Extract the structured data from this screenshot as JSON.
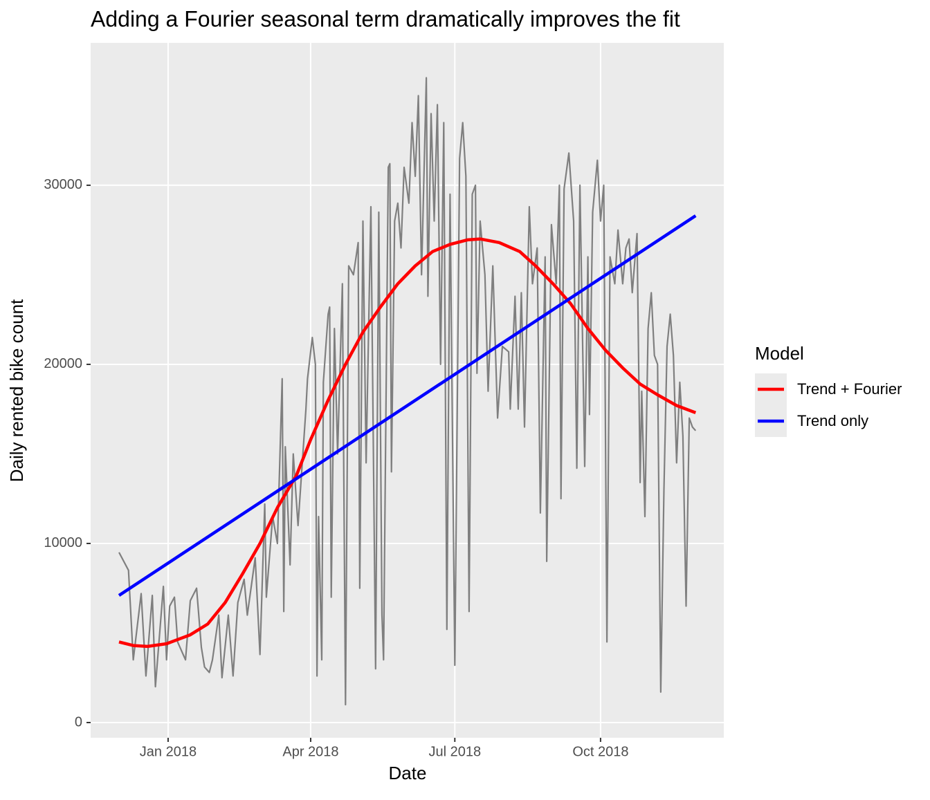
{
  "chart_data": {
    "type": "line",
    "title": "Adding a Fourier seasonal term dramatically improves the fit",
    "x_label": "Date",
    "y_label": "Daily rented bike count",
    "legend_title": "Model",
    "xlim": [
      -17.9,
      381.8
    ],
    "xticks": [
      {
        "value": 31,
        "label": "Jan 2018"
      },
      {
        "value": 121,
        "label": "Apr 2018"
      },
      {
        "value": 212,
        "label": "Jul 2018"
      },
      {
        "value": 304,
        "label": "Oct 2018"
      }
    ],
    "ylim": [
      -850,
      37950
    ],
    "yticks": [
      0,
      10000,
      20000,
      30000
    ],
    "grid": true,
    "color": "#7f7f7f",
    "x": [
      0,
      6,
      9,
      14,
      17,
      21,
      23,
      28,
      30,
      32,
      35,
      37,
      42,
      45,
      49,
      52,
      54,
      57,
      59,
      63,
      65,
      69,
      72,
      75,
      79,
      81,
      86,
      89,
      92,
      93,
      97,
      100,
      103,
      104,
      105,
      108,
      110,
      113,
      118,
      119,
      122,
      124,
      125,
      126,
      128,
      129,
      132,
      133,
      134,
      136,
      138,
      141,
      143,
      145,
      148,
      151,
      152,
      154,
      156,
      159,
      162,
      164,
      166,
      167,
      170,
      171,
      172,
      174,
      176,
      178,
      180,
      183,
      185,
      187,
      189,
      191,
      194,
      195,
      197,
      199,
      201,
      203,
      205,
      207,
      209,
      212,
      215,
      217,
      219,
      221,
      223,
      225,
      226,
      228,
      231,
      233,
      236,
      239,
      242,
      246,
      247,
      250,
      252,
      254,
      256,
      259,
      261,
      264,
      266,
      269,
      270,
      273,
      276,
      278,
      279,
      281,
      284,
      287,
      289,
      291,
      294,
      296,
      297,
      299,
      302,
      304,
      306,
      308,
      310,
      313,
      315,
      318,
      320,
      322,
      324,
      327,
      329,
      330,
      332,
      334,
      336,
      338,
      340,
      342,
      344,
      346,
      348,
      350,
      352,
      354,
      356,
      358,
      360,
      362,
      364
    ],
    "values": [
      9500,
      8500,
      3500,
      7200,
      2600,
      7100,
      2000,
      7600,
      3500,
      6500,
      7000,
      4500,
      3500,
      6800,
      7500,
      4200,
      3100,
      2800,
      3500,
      6000,
      2500,
      6000,
      2600,
      6700,
      8000,
      6000,
      9200,
      3800,
      12200,
      7000,
      11500,
      10000,
      19200,
      6200,
      15400,
      8800,
      15000,
      11000,
      17500,
      19200,
      21500,
      20000,
      2600,
      11500,
      3500,
      19000,
      22800,
      23200,
      7000,
      22000,
      15000,
      24500,
      1000,
      25500,
      25000,
      26800,
      7500,
      28000,
      14500,
      28800,
      3000,
      28500,
      6000,
      3500,
      31000,
      31200,
      14000,
      28000,
      29000,
      26500,
      31000,
      29000,
      33500,
      30500,
      35000,
      25000,
      36000,
      23800,
      34000,
      28000,
      34500,
      20000,
      33500,
      5200,
      29500,
      3200,
      31500,
      33500,
      30500,
      6200,
      29500,
      30000,
      19500,
      28000,
      25000,
      18500,
      25500,
      17000,
      21000,
      20700,
      17500,
      23800,
      17500,
      24000,
      16500,
      28800,
      24500,
      26500,
      11700,
      26000,
      9000,
      27800,
      24500,
      30000,
      12500,
      29800,
      31800,
      28000,
      14200,
      30000,
      14300,
      26000,
      17200,
      28500,
      31400,
      28000,
      30000,
      4500,
      26000,
      24500,
      27500,
      24500,
      26500,
      27000,
      24000,
      27300,
      13400,
      18500,
      11500,
      22000,
      24000,
      20500,
      20000,
      1700,
      13000,
      21000,
      22800,
      20500,
      14500,
      19000,
      16000,
      6500,
      17000,
      16500,
      16300
    ],
    "series": [
      {
        "name": "Trend + Fourier",
        "color": "#ff0000",
        "x": [
          0,
          9,
          18,
          30,
          45,
          56,
          67,
          78,
          89,
          100,
          112,
          121,
          132,
          143,
          154,
          165,
          176,
          187,
          198,
          209,
          220,
          228,
          240,
          253,
          263,
          274,
          285,
          296,
          307,
          318,
          329,
          340,
          352,
          364
        ],
        "values": [
          4500,
          4300,
          4250,
          4400,
          4900,
          5500,
          6700,
          8300,
          10000,
          12000,
          13800,
          15800,
          18000,
          20000,
          21800,
          23200,
          24500,
          25500,
          26300,
          26700,
          26950,
          27000,
          26800,
          26300,
          25500,
          24500,
          23400,
          22000,
          20800,
          19800,
          18900,
          18300,
          17700,
          17300
        ]
      },
      {
        "name": "Trend only",
        "color": "#0000ff",
        "x": [
          0,
          364
        ],
        "values": [
          7100,
          28300
        ]
      }
    ]
  }
}
